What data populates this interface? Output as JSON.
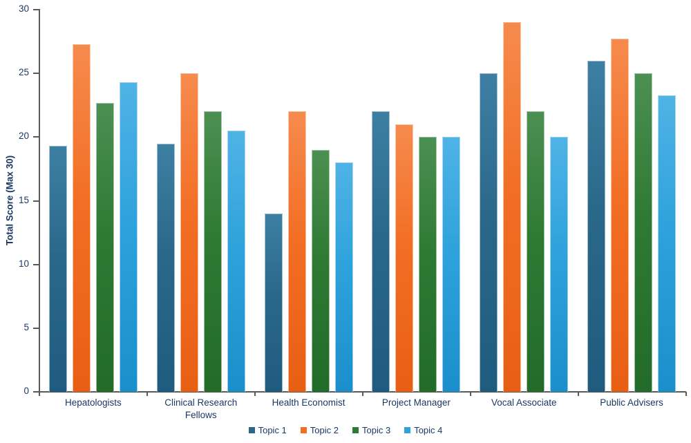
{
  "colors": {
    "text": "#1B3864",
    "axis": "#595959"
  },
  "chart_data": {
    "type": "bar",
    "title": "",
    "xlabel": "",
    "ylabel": "Total Score (Max 30)",
    "ylim": [
      0,
      30
    ],
    "yticks": [
      0,
      5,
      10,
      15,
      20,
      25,
      30
    ],
    "grid": false,
    "legend_position": "bottom-center",
    "categories": [
      "Hepatologists",
      "Clinical Research Fellows",
      "Health Economist",
      "Project Manager",
      "Vocal Associate",
      "Public Advisers"
    ],
    "series": [
      {
        "name": "Topic 1",
        "color": "#2A6889",
        "color_light": "#3D7FA3",
        "color_dark": "#1F5B7E",
        "values": [
          19.3,
          19.5,
          14,
          22,
          25,
          26
        ]
      },
      {
        "name": "Topic 2",
        "color": "#F26E24",
        "color_light": "#F68B4E",
        "color_dark": "#E85F14",
        "values": [
          27.3,
          25,
          22,
          21,
          29,
          27.7
        ]
      },
      {
        "name": "Topic 3",
        "color": "#2E7A34",
        "color_light": "#4C8F52",
        "color_dark": "#226B29",
        "values": [
          22.7,
          22,
          19,
          20,
          22,
          25
        ]
      },
      {
        "name": "Topic 4",
        "color": "#2EA2DB",
        "color_light": "#4FB3E6",
        "color_dark": "#1B8FCB",
        "values": [
          24.3,
          20.5,
          18,
          20,
          20,
          23.3
        ]
      }
    ]
  }
}
